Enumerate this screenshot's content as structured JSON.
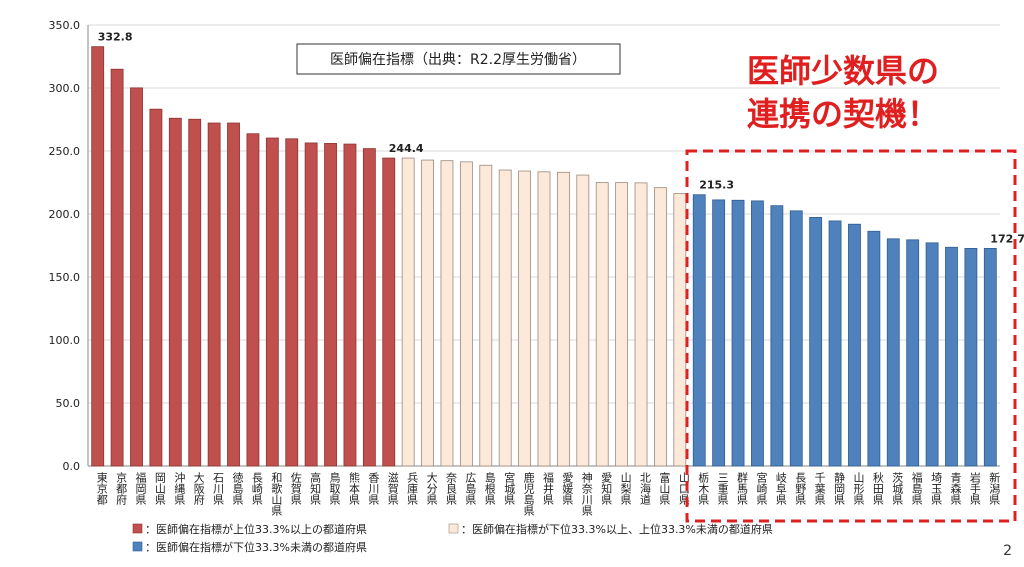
{
  "chart_data": {
    "type": "bar",
    "title": "医師偏在指標（出典：R2.2厚生労働省）",
    "ylim": [
      0,
      350
    ],
    "yticks": [
      "0.0",
      "50.0",
      "100.0",
      "150.0",
      "200.0",
      "250.0",
      "300.0",
      "350.0"
    ],
    "grid": true,
    "categories": [
      "東京都",
      "京都府",
      "福岡県",
      "岡山県",
      "沖縄県",
      "大阪府",
      "石川県",
      "徳島県",
      "長崎県",
      "和歌山県",
      "佐賀県",
      "高知県",
      "鳥取県",
      "熊本県",
      "香川県",
      "滋賀県",
      "兵庫県",
      "大分県",
      "奈良県",
      "広島県",
      "島根県",
      "宮城県",
      "鹿児島県",
      "福井県",
      "愛媛県",
      "神奈川県",
      "愛知県",
      "山梨県",
      "北海道",
      "富山県",
      "山口県",
      "栃木県",
      "三重県",
      "群馬県",
      "宮崎県",
      "岐阜県",
      "長野県",
      "千葉県",
      "静岡県",
      "山形県",
      "秋田県",
      "茨城県",
      "福島県",
      "埼玉県",
      "青森県",
      "岩手県",
      "新潟県"
    ],
    "values": [
      332.8,
      314.9,
      300.1,
      283.2,
      276.0,
      275.2,
      272.2,
      272.2,
      263.7,
      260.3,
      259.7,
      256.4,
      256.0,
      255.5,
      251.9,
      244.4,
      244.4,
      242.8,
      242.3,
      241.4,
      238.7,
      234.9,
      234.1,
      233.5,
      233.1,
      230.9,
      224.9,
      224.9,
      224.7,
      220.9,
      216.2,
      215.3,
      211.2,
      210.9,
      210.4,
      206.6,
      202.5,
      197.3,
      194.5,
      191.9,
      186.3,
      180.3,
      179.5,
      177.1,
      173.6,
      172.7,
      172.7
    ],
    "groups": [
      "upper",
      "upper",
      "upper",
      "upper",
      "upper",
      "upper",
      "upper",
      "upper",
      "upper",
      "upper",
      "upper",
      "upper",
      "upper",
      "upper",
      "upper",
      "upper",
      "middle",
      "middle",
      "middle",
      "middle",
      "middle",
      "middle",
      "middle",
      "middle",
      "middle",
      "middle",
      "middle",
      "middle",
      "middle",
      "middle",
      "middle",
      "lower",
      "lower",
      "lower",
      "lower",
      "lower",
      "lower",
      "lower",
      "lower",
      "lower",
      "lower",
      "lower",
      "lower",
      "lower",
      "lower",
      "lower",
      "lower"
    ],
    "data_labels": [
      {
        "index": 0,
        "text": "332.8"
      },
      {
        "index": 15,
        "text": "244.4"
      },
      {
        "index": 31,
        "text": "215.3"
      },
      {
        "index": 46,
        "text": "172.7"
      }
    ],
    "colors": {
      "upper": "#c0504d",
      "middle": "#fde9d9",
      "lower": "#4f81bd"
    },
    "legend": [
      {
        "group": "upper",
        "text": "：医師偏在指標が上位33.3%以上の都道府県"
      },
      {
        "group": "middle",
        "text": "：医師偏在指標が下位33.3%以上、上位33.3%未満の都道府県"
      },
      {
        "group": "lower",
        "text": "：医師偏在指標が下位33.3%未満の都道府県"
      }
    ],
    "legend_position": "bottom-left"
  },
  "callout": {
    "line1": "医師少数県の",
    "line2": "連携の契機！",
    "color": "#e02020"
  },
  "page_number": "2"
}
